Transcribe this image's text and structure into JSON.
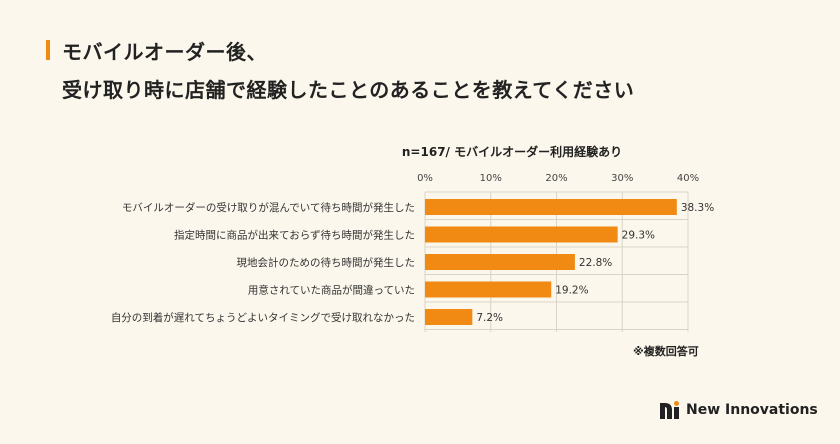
{
  "title": {
    "line1": "モバイルオーダー後、",
    "line2": "受け取り時に店舗で経験したことのあることを教えてください"
  },
  "colors": {
    "accent": "#f08a12",
    "bar": "#f08a12",
    "grid": "#d9d4c6",
    "background": "#fbf7ec"
  },
  "chart_data": {
    "type": "bar",
    "orientation": "horizontal",
    "subtitle": "n=167/ モバイルオーダー利用経験あり",
    "categories": [
      "モバイルオーダーの受け取りが混んでいて待ち時間が発生した",
      "指定時間に商品が出来ておらず待ち時間が発生した",
      "現地会計のための待ち時間が発生した",
      "用意されていた商品が間違っていた",
      "自分の到着が遅れてちょうどよいタイミングで受け取れなかった"
    ],
    "values": [
      38.3,
      29.3,
      22.8,
      19.2,
      7.2
    ],
    "value_labels": [
      "38.3%",
      "29.3%",
      "22.8%",
      "19.2%",
      "7.2%"
    ],
    "x_ticks": [
      "0%",
      "10%",
      "20%",
      "30%",
      "40%"
    ],
    "xlim": [
      0,
      40
    ],
    "grid": true
  },
  "note": "※複数回答可",
  "brand": {
    "name": "New Innovations",
    "logo_icon": "ni-logo-icon"
  }
}
